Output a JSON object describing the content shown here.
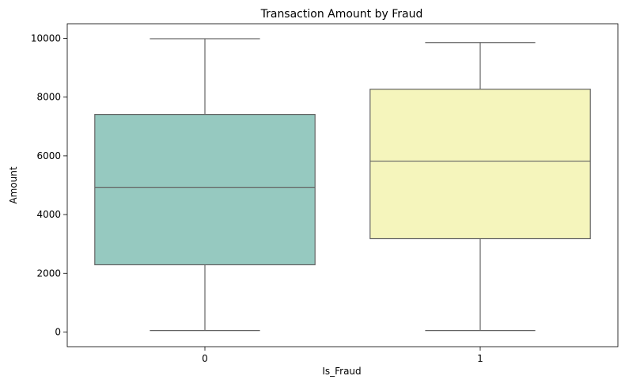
{
  "chart_data": {
    "type": "box",
    "title": "Transaction Amount by Fraud",
    "xlabel": "Is_Fraud",
    "ylabel": "Amount",
    "categories": [
      "0",
      "1"
    ],
    "yticks": [
      0,
      2000,
      4000,
      6000,
      8000,
      10000
    ],
    "ylim": [
      -500,
      10500
    ],
    "grid": false,
    "boxes": [
      {
        "category": "0",
        "min": 50,
        "q1": 2290,
        "median": 4930,
        "q3": 7410,
        "max": 9990,
        "color": "#96c9c0"
      },
      {
        "category": "1",
        "min": 50,
        "q1": 3180,
        "median": 5820,
        "q3": 8270,
        "max": 9860,
        "color": "#f5f5bc"
      }
    ]
  }
}
